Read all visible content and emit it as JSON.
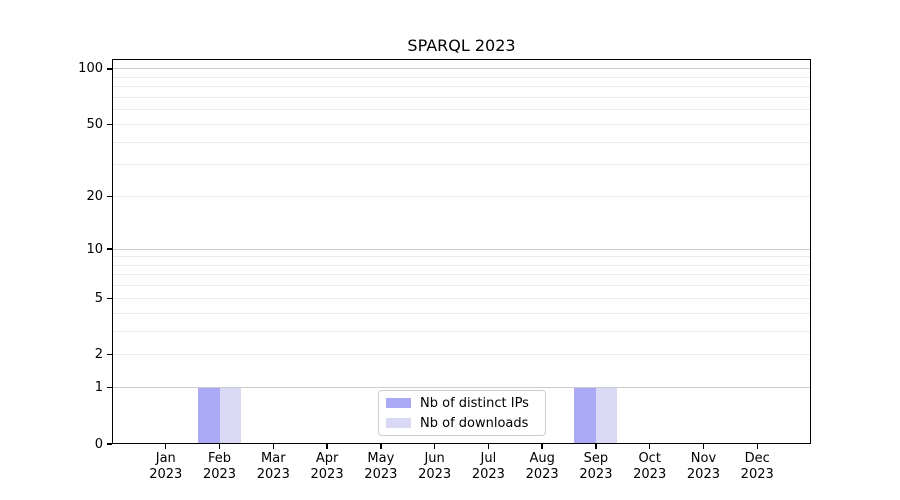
{
  "chart_data": {
    "type": "bar",
    "title": "SPARQL 2023",
    "categories": [
      "Jan",
      "Feb",
      "Mar",
      "Apr",
      "May",
      "Jun",
      "Jul",
      "Aug",
      "Sep",
      "Oct",
      "Nov",
      "Dec"
    ],
    "category_year": "2023",
    "series": [
      {
        "name": "Nb of distinct IPs",
        "color": "#a9a9f6",
        "values": [
          0,
          1,
          0,
          0,
          0,
          0,
          0,
          0,
          1,
          0,
          0,
          0
        ]
      },
      {
        "name": "Nb of downloads",
        "color": "#d9d9f6",
        "values": [
          0,
          1,
          0,
          0,
          0,
          0,
          0,
          0,
          1,
          0,
          0,
          0
        ]
      }
    ],
    "yscale": "log1p",
    "ylim": [
      0,
      113
    ],
    "yticks": [
      0,
      1,
      2,
      5,
      10,
      20,
      50,
      100
    ],
    "major_grid_values": [
      1,
      10,
      100
    ],
    "minor_grid_values": [
      2,
      3,
      4,
      5,
      6,
      7,
      8,
      9,
      20,
      30,
      40,
      50,
      60,
      70,
      80,
      90
    ],
    "grid": "horizontal",
    "legend_position": "lower center",
    "colors": {
      "axis": "#000000",
      "major_grid": "#cccccc",
      "minor_grid": "#ebebeb",
      "background": "#ffffff"
    }
  }
}
